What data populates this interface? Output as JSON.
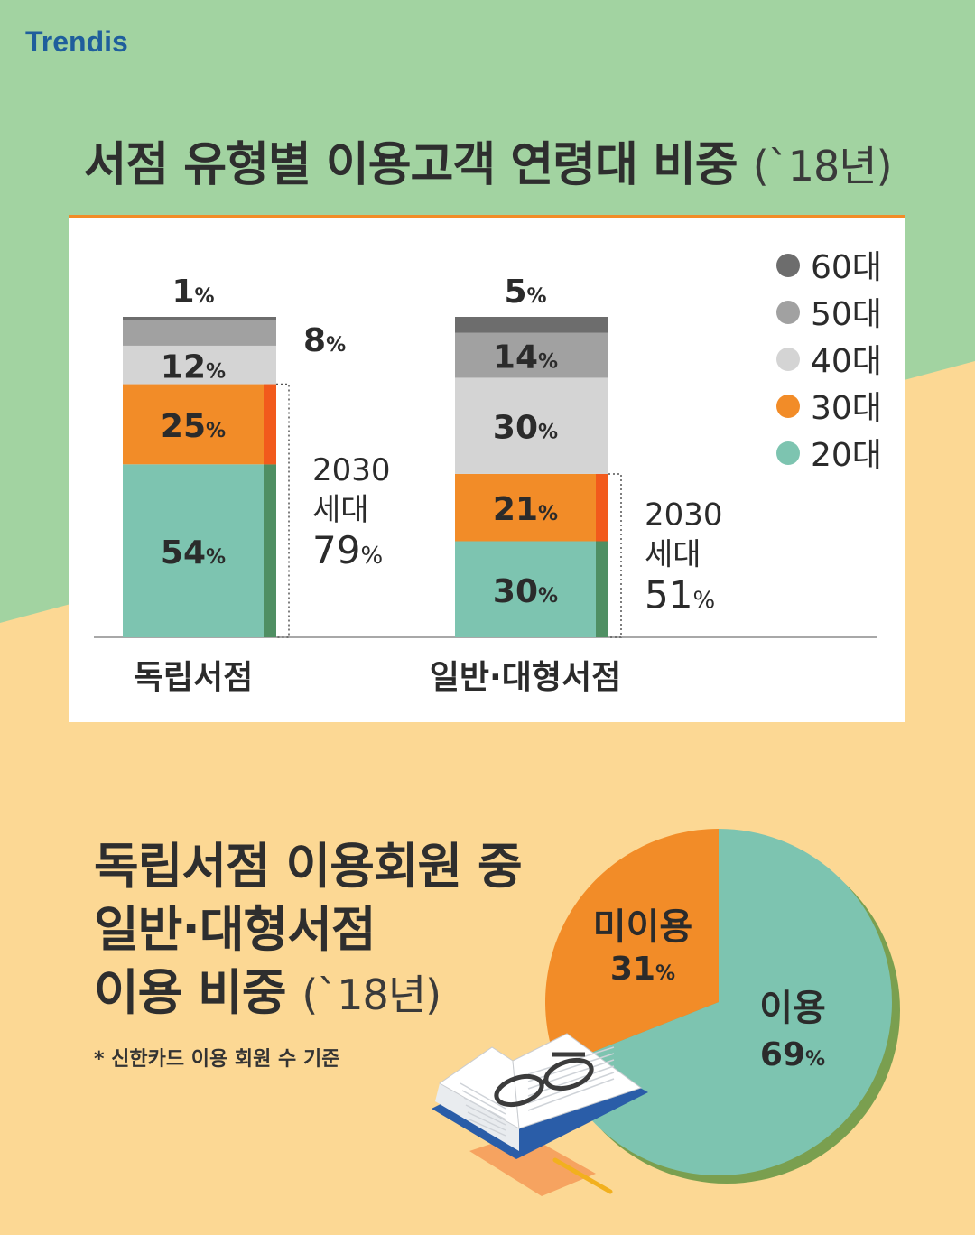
{
  "logo": "Trendis",
  "title1": {
    "main": "서점 유형별 이용고객 연령대 비중",
    "year": "(`18년)"
  },
  "title2": {
    "line1": "독립서점 이용회원 중",
    "line2": "일반·대형서점",
    "line3": "이용 비중",
    "year": "(`18년)"
  },
  "footnote": "* 신한카드 이용 회원 수 기준",
  "colors": {
    "20s": "#7dc4b0",
    "30s": "#f28c28",
    "40s": "#d4d4d4",
    "50s": "#a1a1a1",
    "60s": "#6d6d6d",
    "green_bg": "#a2d3a1",
    "yellow_bg": "#fcd894"
  },
  "chart_data": [
    {
      "type": "bar",
      "stacked": true,
      "categories": [
        "독립서점",
        "일반·대형서점"
      ],
      "series": [
        {
          "name": "20대",
          "values": [
            54,
            30
          ]
        },
        {
          "name": "30대",
          "values": [
            25,
            21
          ]
        },
        {
          "name": "40대",
          "values": [
            12,
            30
          ]
        },
        {
          "name": "50대",
          "values": [
            8,
            14
          ]
        },
        {
          "name": "60대",
          "values": [
            1,
            5
          ]
        }
      ],
      "labels": [
        [
          "54%",
          "25%",
          "12%",
          "8%",
          "1%"
        ],
        [
          "30%",
          "21%",
          "30%",
          "14%",
          "5%"
        ]
      ],
      "annotations": [
        {
          "line1": "2030",
          "line2": "세대",
          "value": "79%"
        },
        {
          "line1": "2030",
          "line2": "세대",
          "value": "51%"
        }
      ],
      "legend": [
        "60대",
        "50대",
        "40대",
        "30대",
        "20대"
      ],
      "legend_position": "top-right"
    },
    {
      "type": "pie",
      "slices": [
        {
          "name": "이용",
          "value": 69,
          "label": "69%"
        },
        {
          "name": "미이용",
          "value": 31,
          "label": "31%"
        }
      ]
    }
  ]
}
